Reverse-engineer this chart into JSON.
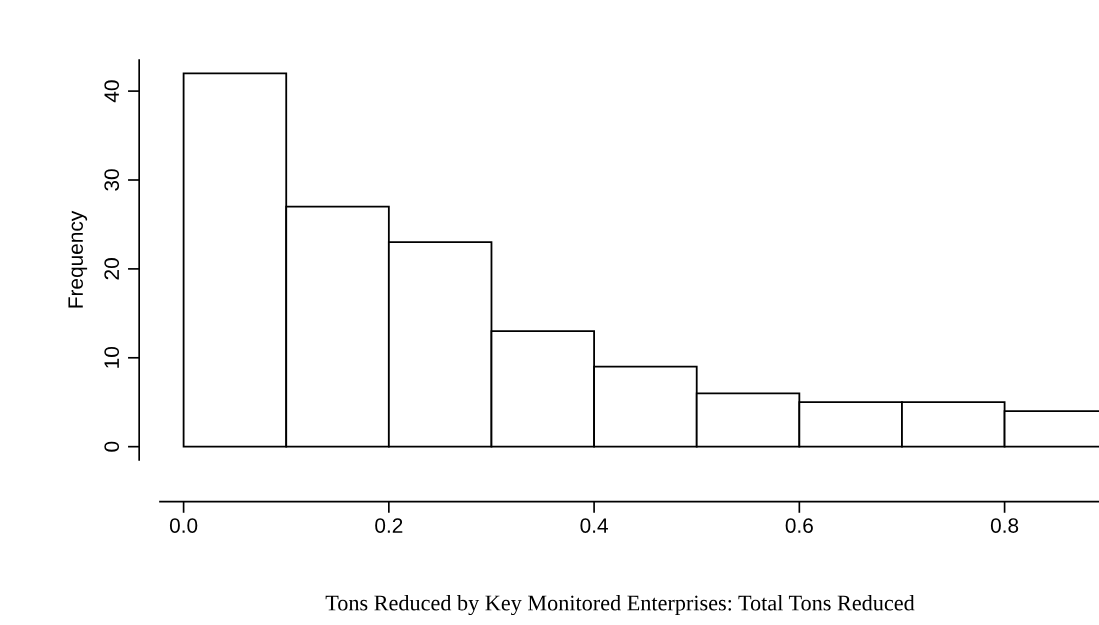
{
  "chart_data": {
    "type": "histogram",
    "xlabel": "Tons Reduced by Key Monitored Enterprises: Total Tons Reduced",
    "ylabel": "Frequency",
    "bins": [
      0.0,
      0.1,
      0.2,
      0.3,
      0.4,
      0.5,
      0.6,
      0.7,
      0.8,
      0.9
    ],
    "values": [
      42,
      27,
      23,
      13,
      9,
      6,
      5,
      5,
      4
    ],
    "color": "#ffffff",
    "xlim": [
      -0.023,
      0.892
    ],
    "ylim": [
      -1.5,
      43.5
    ],
    "xticks": [
      {
        "value": 0.0,
        "label": "0.0"
      },
      0.2,
      0.4,
      0.6,
      0.8
    ],
    "yticks": [
      0,
      10,
      20,
      30,
      40
    ],
    "grid": false
  }
}
